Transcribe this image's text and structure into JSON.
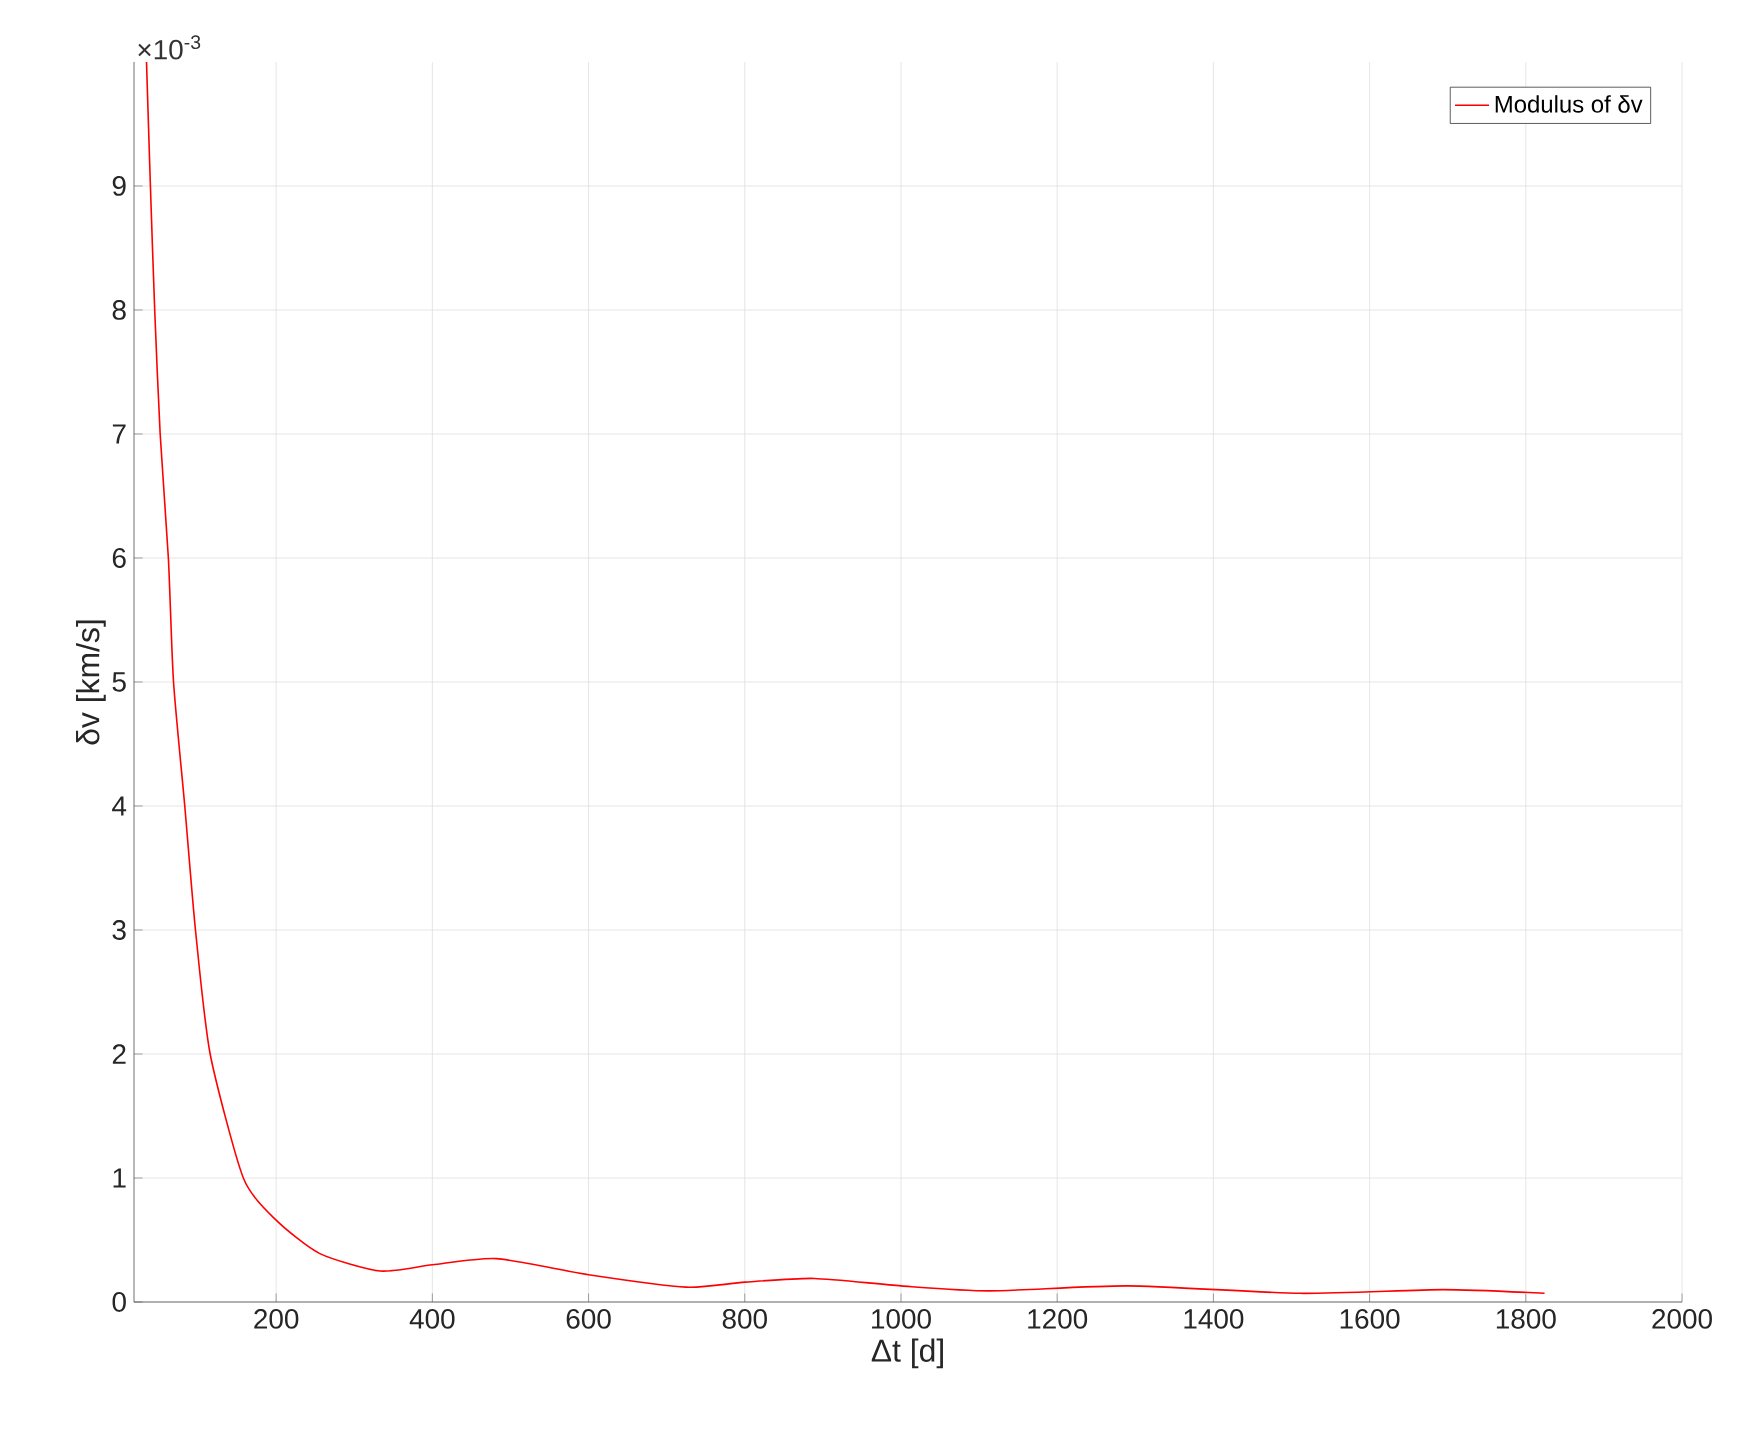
{
  "chart_data": {
    "type": "line",
    "xlabel": "Δt [d]",
    "ylabel": "δv [km/s]",
    "annotations": [
      "×10$^{-3}$"
    ],
    "xlim": [
      18,
      2000
    ],
    "xticks": [
      200,
      400,
      600,
      800,
      1000,
      1200,
      1400,
      1600,
      1800,
      2000
    ],
    "ylim": [
      0,
      10
    ],
    "yticks": [
      0,
      1,
      2,
      3,
      4,
      5,
      6,
      7,
      8,
      9
    ],
    "grid": true,
    "legend": "top right",
    "marker": "none",
    "line_style": "solid",
    "series": [
      {
        "name": "Modulus of δv",
        "color": "#ff0000",
        "x": [
          34,
          39,
          44.5,
          51.5,
          62,
          68.6,
          83,
          96.7,
          115.5,
          158,
          200,
          256,
          333,
          400,
          482,
          600,
          725,
          800,
          889,
          1000,
          1113,
          1291,
          1511,
          1694,
          1824
        ],
        "values": [
          10,
          9,
          8,
          7,
          6,
          5,
          4,
          3,
          2,
          1,
          0.66,
          0.39,
          0.25,
          0.3,
          0.35,
          0.22,
          0.12,
          0.16,
          0.19,
          0.13,
          0.09,
          0.13,
          0.07,
          0.1,
          0.07
        ]
      }
    ]
  }
}
